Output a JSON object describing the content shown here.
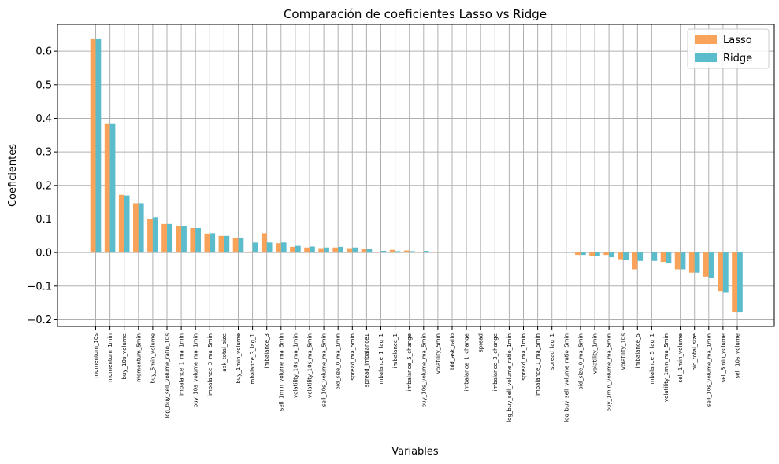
{
  "chart_data": {
    "type": "bar",
    "title": "Comparación de coeficientes Lasso vs Ridge",
    "xlabel": "Variables",
    "ylabel": "Coeficientes",
    "ylim": [
      -0.22,
      0.68
    ],
    "yticks": [
      -0.2,
      -0.1,
      0.0,
      0.1,
      0.2,
      0.3,
      0.4,
      0.5,
      0.6
    ],
    "ytick_labels": [
      "−0.2",
      "−0.1",
      "0.0",
      "0.1",
      "0.2",
      "0.3",
      "0.4",
      "0.5",
      "0.6"
    ],
    "grid": true,
    "legend_position": "top-right",
    "categories": [
      "momentum_10s",
      "momentum_1min",
      "buy_10s_volume",
      "momentum_5min",
      "buy_5min_volume",
      "log_buy_sell_volume_ratio_10s",
      "imbalance_1_ma_1min",
      "buy_10s_volume_ma_1min",
      "imbalance_3_ma_5min",
      "ask_total_size",
      "buy_1min_volume",
      "imbalance_3_lag_1",
      "imbalance_3",
      "sell_1min_volume_ma_5min",
      "volatility_10s_ma_1min",
      "volatility_10s_ma_5min",
      "sell_10s_volume_ma_5min",
      "bid_size_0_ma_1min",
      "spread_ma_5min",
      "spread_imbalance1",
      "imbalance_1_lag_1",
      "imbalance_1",
      "imbalance_5_change",
      "buy_10s_volume_ma_5min",
      "volatility_5min",
      "bid_ask_ratio",
      "imbalance_1_change",
      "spread",
      "imbalance_3_change",
      "log_buy_sell_volume_ratio_1min",
      "spread_ma_1min",
      "imbalance_1_ma_5min",
      "spread_lag_1",
      "log_buy_sell_volume_ratio_5min",
      "bid_size_0_ma_5min",
      "volatility_1min",
      "buy_1min_volume_ma_5min",
      "volatility_10s",
      "imbalance_5",
      "imbalance_5_lag_1",
      "volatility_1min_ma_5min",
      "sell_1min_volume",
      "bid_total_size",
      "sell_10s_volume_ma_1min",
      "sell_5min_volume",
      "sell_10s_volume"
    ],
    "series": [
      {
        "name": "Lasso",
        "color": "#F9A25A",
        "values": [
          0.638,
          0.383,
          0.172,
          0.147,
          0.1,
          0.085,
          0.08,
          0.073,
          0.057,
          0.05,
          0.045,
          0.003,
          0.058,
          0.028,
          0.017,
          0.015,
          0.013,
          0.015,
          0.013,
          0.01,
          0.002,
          0.008,
          0.006,
          0.001,
          0.001,
          0.0,
          0.0,
          0.0,
          0.0,
          0.0,
          0.0,
          0.0,
          0.0,
          0.0,
          -0.007,
          -0.009,
          -0.007,
          -0.02,
          -0.05,
          0.0,
          -0.028,
          -0.05,
          -0.06,
          -0.072,
          -0.115,
          -0.178
        ]
      },
      {
        "name": "Ridge",
        "color": "#5BBCCB",
        "values": [
          0.638,
          0.383,
          0.17,
          0.147,
          0.105,
          0.085,
          0.08,
          0.073,
          0.058,
          0.05,
          0.045,
          0.03,
          0.03,
          0.03,
          0.02,
          0.018,
          0.015,
          0.017,
          0.015,
          0.01,
          0.005,
          0.004,
          0.004,
          0.005,
          0.002,
          0.002,
          0.0,
          0.0,
          0.0,
          0.0,
          0.0,
          0.0,
          0.0,
          0.0,
          -0.007,
          -0.009,
          -0.014,
          -0.022,
          -0.025,
          -0.025,
          -0.032,
          -0.05,
          -0.06,
          -0.075,
          -0.118,
          -0.178
        ]
      }
    ]
  }
}
